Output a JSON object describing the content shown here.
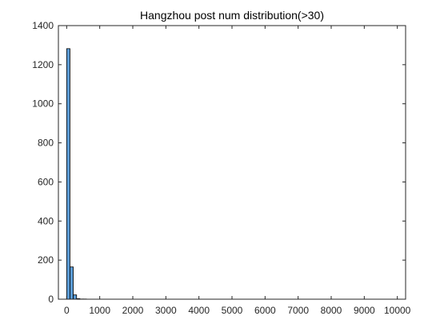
{
  "chart_data": {
    "type": "bar",
    "title": "Hangzhou post num distribution(>30)",
    "xlabel": "",
    "ylabel": "",
    "xlim": [
      -250,
      10250
    ],
    "ylim": [
      0,
      1400
    ],
    "xticks": [
      0,
      1000,
      2000,
      3000,
      4000,
      5000,
      6000,
      7000,
      8000,
      9000,
      10000
    ],
    "yticks": [
      0,
      200,
      400,
      600,
      800,
      1000,
      1200,
      1400
    ],
    "bin_width": 100,
    "bins": [
      {
        "x0": 0,
        "x1": 100,
        "count": 1282
      },
      {
        "x0": 100,
        "x1": 200,
        "count": 165
      },
      {
        "x0": 200,
        "x1": 300,
        "count": 22
      },
      {
        "x0": 300,
        "x1": 400,
        "count": 3
      },
      {
        "x0": 400,
        "x1": 500,
        "count": 1
      },
      {
        "x0": 500,
        "x1": 600,
        "count": 1
      }
    ],
    "grid": false,
    "bar_color": "#5B9BD5",
    "bar_edge_color": "#000000"
  }
}
